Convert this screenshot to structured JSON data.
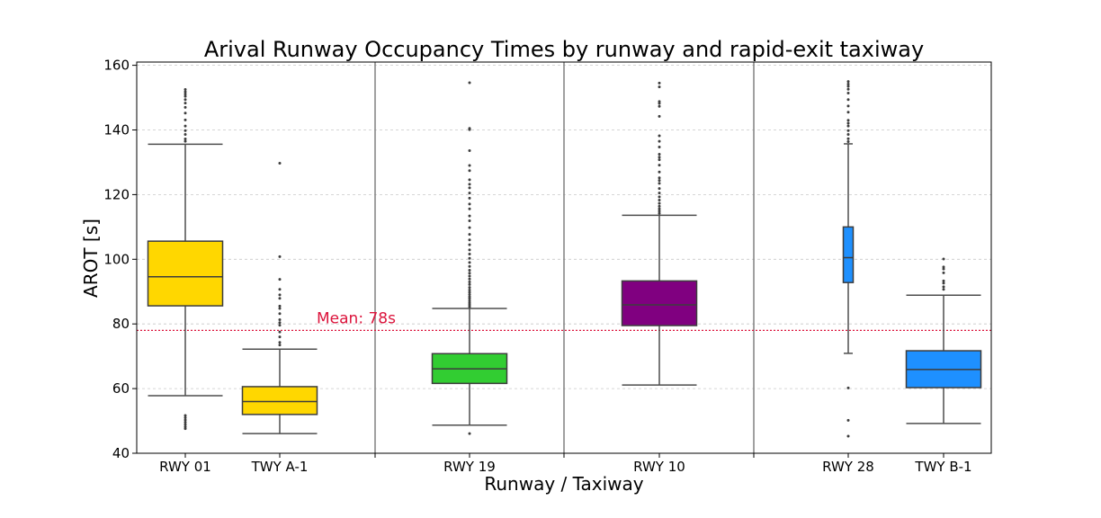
{
  "chart_data": {
    "type": "box",
    "title": "Arival Runway Occupancy Times by runway and rapid-exit taxiway",
    "xlabel": "Runway / Taxiway",
    "ylabel": "AROT [s]",
    "ylim": [
      40,
      161
    ],
    "yticks": [
      40,
      60,
      80,
      100,
      120,
      140,
      160
    ],
    "grid": "horizontal-dashed",
    "groups": [
      {
        "name": "RWY 01",
        "color": "#FFD700",
        "whisker_low": 57.8,
        "q1": 85.6,
        "median": 94.6,
        "q3": 105.6,
        "whisker_high": 135.6,
        "outliers": [
          47.6,
          48.2,
          48.9,
          49.6,
          50.3,
          51.0,
          51.7,
          136.5,
          137.2,
          138.6,
          139.8,
          141.2,
          143.1,
          145.2,
          147.0,
          148.3,
          149.4,
          150.4,
          151.1,
          151.8,
          152.5
        ]
      },
      {
        "name": "TWY A-1",
        "color": "#FFD700",
        "whisker_low": 46.1,
        "q1": 52.0,
        "median": 56.0,
        "q3": 60.6,
        "whisker_high": 72.2,
        "outliers": [
          73.5,
          74.3,
          76.0,
          77.5,
          79.6,
          80.4,
          81.3,
          83.2,
          84.8,
          85.5,
          87.9,
          89.0,
          90.7,
          93.8,
          100.8,
          129.7
        ]
      },
      {
        "name": "RWY 19",
        "color": "#32CD32",
        "whisker_low": 48.7,
        "q1": 61.6,
        "median": 66.1,
        "q3": 70.8,
        "whisker_high": 84.8,
        "outliers": [
          46.1,
          85.3,
          85.9,
          86.5,
          87.1,
          87.8,
          88.4,
          89.1,
          89.8,
          90.5,
          91.3,
          92.2,
          93.0,
          93.9,
          94.8,
          95.7,
          96.6,
          97.8,
          99.0,
          100.3,
          101.6,
          102.9,
          104.5,
          106.0,
          107.7,
          109.8,
          111.9,
          113.4,
          115.6,
          117.1,
          118.9,
          120.5,
          122.1,
          123.2,
          124.6,
          127.4,
          129.0,
          133.6,
          140.1,
          140.5,
          154.6
        ]
      },
      {
        "name": "RWY 10",
        "color": "#800080",
        "whisker_low": 61.1,
        "q1": 79.5,
        "median": 85.9,
        "q3": 93.3,
        "whisker_high": 113.6,
        "outliers": [
          114.2,
          114.9,
          115.6,
          116.4,
          117.3,
          118.3,
          119.3,
          120.5,
          121.9,
          123.5,
          124.4,
          125.2,
          127.0,
          129.1,
          130.8,
          131.6,
          132.5,
          134.7,
          136.5,
          138.2,
          144.2,
          147.3,
          148.2,
          148.8,
          153.3,
          154.5
        ]
      },
      {
        "name": "RWY 28",
        "color": "#1E90FF",
        "whisker_low": 70.9,
        "q1": 92.8,
        "median": 100.5,
        "q3": 110.0,
        "whisker_high": 135.7,
        "outliers": [
          45.3,
          50.2,
          60.2,
          136.4,
          137.3,
          138.6,
          139.8,
          141.2,
          142.1,
          143.0,
          145.5,
          147.4,
          149.4,
          151.4,
          152.6,
          153.5,
          154.2,
          155.0
        ]
      },
      {
        "name": "TWY B-1",
        "color": "#1E90FF",
        "whisker_low": 49.2,
        "q1": 60.3,
        "median": 65.9,
        "q3": 71.7,
        "whisker_high": 88.9,
        "outliers": [
          90.7,
          91.5,
          92.6,
          93.3,
          95.8,
          97.0,
          97.6,
          100.1
        ]
      }
    ],
    "mean_line": {
      "value": 78,
      "label": "Mean: 78s",
      "color": "#DC143C"
    }
  }
}
